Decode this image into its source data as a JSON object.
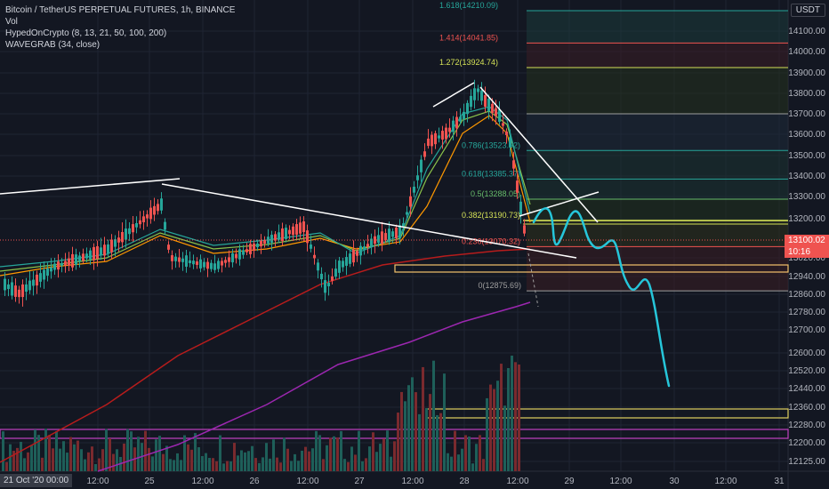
{
  "legend": {
    "title": "Bitcoin / TetherUS PERPETUAL FUTURES, 1h, BINANCE",
    "vol": "Vol",
    "ind1": "HypedOnCrypto (8, 13, 21, 50, 100, 200)",
    "ind2": "WAVEGRAB (34, close)"
  },
  "currency": "USDT",
  "current_price": "13100.02",
  "countdown": "10:16",
  "date_badge": "21 Oct '20   00:00",
  "colors": {
    "background": "#131722",
    "up": "#26a69a",
    "down": "#ef5350",
    "grid": "#1f2433",
    "axis_text": "#b2b5be",
    "fib_line": "#2a8f8f"
  },
  "chart_data": {
    "type": "candlestick",
    "symbol": "BTCUSDT Perpetual",
    "interval": "1h",
    "y_axis": {
      "scale": "linear",
      "ylim": [
        12100,
        14200
      ],
      "ticks": [
        "14100.00",
        "14000.00",
        "13900.00",
        "13800.00",
        "13700.00",
        "13600.00",
        "13500.00",
        "13400.00",
        "13300.00",
        "13200.00",
        "13020.00",
        "12940.00",
        "12860.00",
        "12780.00",
        "12700.00",
        "12600.00",
        "12520.00",
        "12440.00",
        "12360.00",
        "12280.00",
        "12200.00",
        "12125.00"
      ]
    },
    "x_axis": {
      "ticks": [
        "12:00",
        "25",
        "12:00",
        "26",
        "12:00",
        "27",
        "12:00",
        "28",
        "12:00",
        "29",
        "12:00",
        "30",
        "12:00",
        "31"
      ]
    },
    "fib_levels": [
      {
        "ratio": "1.618",
        "price": 14210.09,
        "label": "1.618(14210.09)",
        "color": "#26a69a"
      },
      {
        "ratio": "1.414",
        "price": 14041.85,
        "label": "1.414(14041.85)",
        "color": "#ef5350"
      },
      {
        "ratio": "1.272",
        "price": 13924.74,
        "label": "1.272(13924.74)",
        "color": "#d4e157"
      },
      {
        "ratio": "1",
        "price": 13700,
        "label": "",
        "color": "#9e9e9e"
      },
      {
        "ratio": "0.786",
        "price": 13523.92,
        "label": "0.786(13523.92)",
        "color": "#26a69a"
      },
      {
        "ratio": "0.618",
        "price": 13385.37,
        "label": "0.618(13385.37)",
        "color": "#26a69a"
      },
      {
        "ratio": "0.5",
        "price": 13288.05,
        "label": "0.5(13288.05)",
        "color": "#66bb6a"
      },
      {
        "ratio": "0.382",
        "price": 13190.73,
        "label": "0.382(13190.73)",
        "color": "#d4e157"
      },
      {
        "ratio": "0.236",
        "price": 13070.32,
        "label": "0.236(13070.32)",
        "color": "#ef5350"
      },
      {
        "ratio": "0",
        "price": 12875.69,
        "label": "0(12875.69)",
        "color": "#9e9e9e"
      }
    ]
  }
}
